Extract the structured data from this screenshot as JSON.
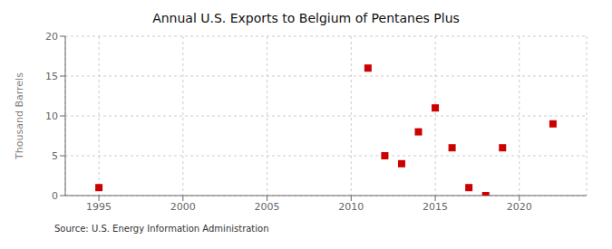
{
  "chart_data": {
    "type": "scatter",
    "title": "Annual U.S. Exports to Belgium of Pentanes Plus",
    "ylabel": "Thousand Barrels",
    "source": "Source: U.S. Energy Information Administration",
    "x": [
      1995,
      2011,
      2012,
      2013,
      2014,
      2015,
      2016,
      2017,
      2018,
      2019,
      2022
    ],
    "values": [
      1.0,
      16.0,
      5.0,
      4.0,
      8.0,
      11.0,
      6.0,
      1.0,
      0.0,
      6.0,
      9.0
    ],
    "color": "#cc0000",
    "marker": "square",
    "grid": true,
    "xlim": [
      1993,
      2024
    ],
    "xticks": [
      1995,
      2000,
      2005,
      2010,
      2015,
      2020
    ],
    "ylim": [
      0,
      20
    ],
    "yticks": [
      0,
      5,
      10,
      15,
      20
    ]
  }
}
